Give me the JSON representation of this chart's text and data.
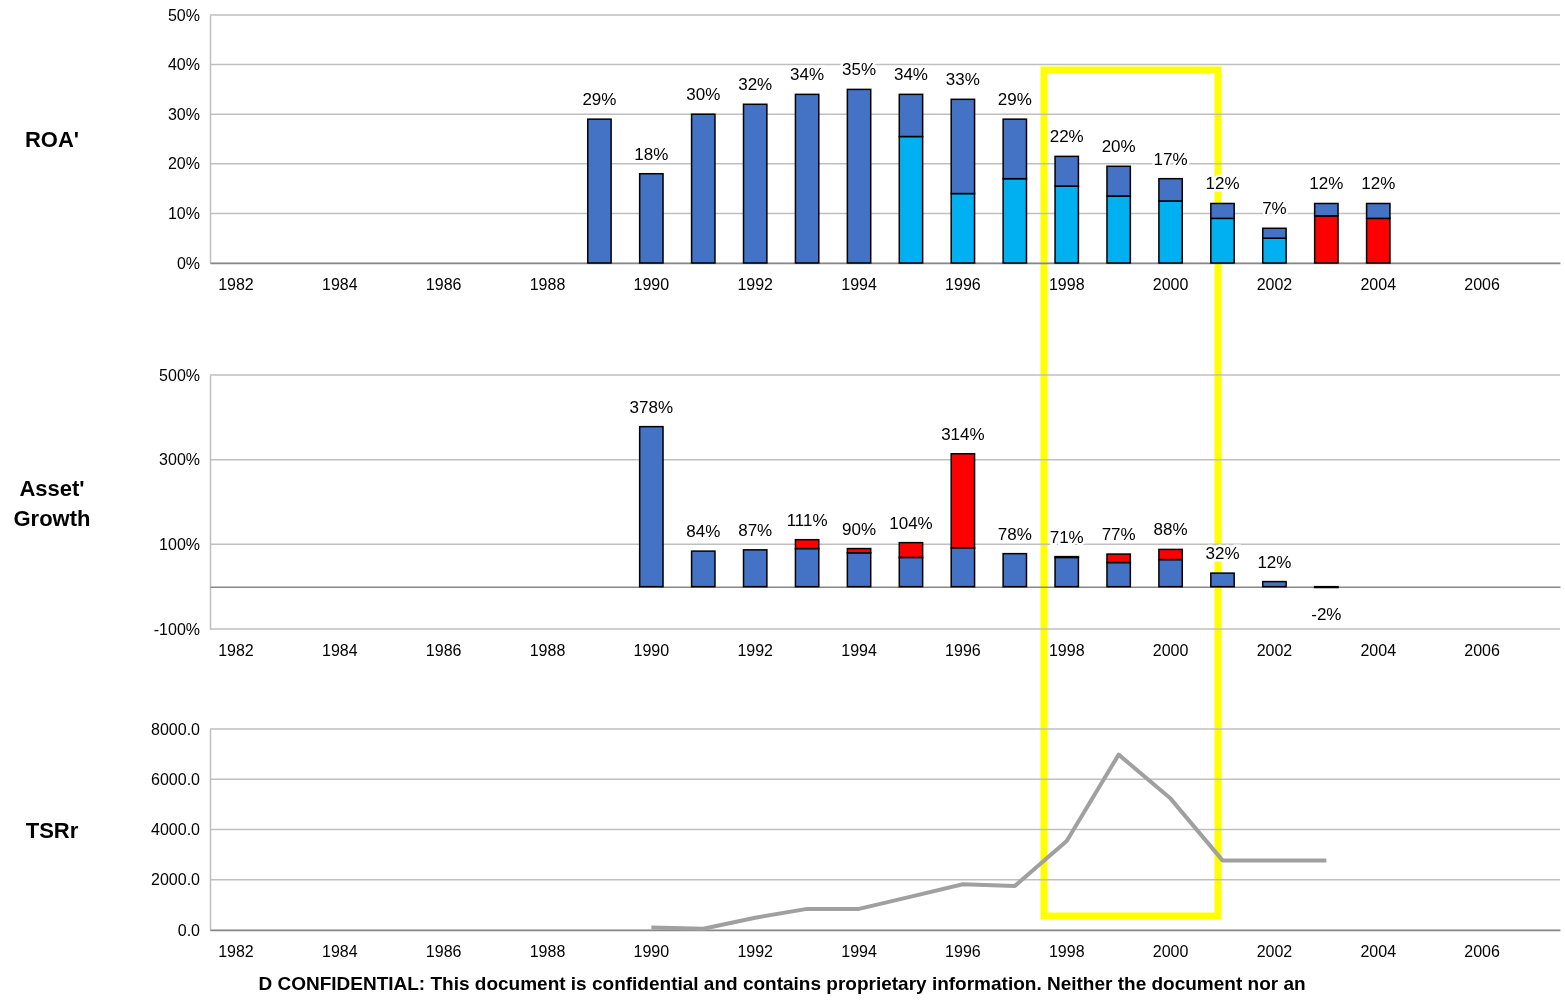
{
  "chart_data": [
    {
      "type": "bar",
      "ylabel": "ROA'",
      "stacked": true,
      "grid": "y",
      "categories": [
        "1982",
        null,
        "1984",
        null,
        "1986",
        null,
        "1988",
        null,
        "1990",
        null,
        "1992",
        null,
        "1994",
        null,
        "1996",
        null,
        "1998",
        null,
        "2000",
        null,
        "2002",
        null,
        "2004",
        null,
        "2006",
        null
      ],
      "series": [
        {
          "color": "#00b0f0",
          "values": [
            null,
            null,
            null,
            null,
            null,
            null,
            null,
            null,
            null,
            null,
            null,
            null,
            null,
            25.5,
            14,
            17,
            15.5,
            13.5,
            12.5,
            9,
            5,
            null,
            null,
            null,
            null,
            null
          ]
        },
        {
          "color": "#ff0000",
          "values": [
            null,
            null,
            null,
            null,
            null,
            null,
            null,
            null,
            null,
            null,
            null,
            null,
            null,
            null,
            null,
            null,
            null,
            null,
            null,
            null,
            null,
            9.5,
            9,
            null,
            null,
            null
          ]
        },
        {
          "color": "#4472c4",
          "values": [
            null,
            null,
            null,
            null,
            null,
            null,
            null,
            29,
            18,
            30,
            32,
            34,
            35,
            8.5,
            19,
            12,
            6,
            6,
            4.5,
            3,
            2,
            2.5,
            3,
            null,
            null,
            null
          ]
        }
      ],
      "totals": [
        null,
        null,
        null,
        null,
        null,
        null,
        null,
        "29%",
        "18%",
        "30%",
        "32%",
        "34%",
        "35%",
        "34%",
        "33%",
        "29%",
        "22%",
        "20%",
        "17%",
        "12%",
        "7%",
        "12%",
        "12%",
        null,
        null,
        null
      ],
      "ylim": [
        0,
        50
      ],
      "yticks": [
        {
          "value": 0,
          "label": "0%"
        },
        {
          "value": 10,
          "label": "10%"
        },
        {
          "value": 20,
          "label": "20%"
        },
        {
          "value": 30,
          "label": "30%"
        },
        {
          "value": 40,
          "label": "40%"
        },
        {
          "value": 50,
          "label": "50%"
        }
      ]
    },
    {
      "type": "bar",
      "ylabel": "Asset' Growth",
      "stacked": true,
      "grid": "y",
      "categories": [
        "1982",
        null,
        "1984",
        null,
        "1986",
        null,
        "1988",
        null,
        "1990",
        null,
        "1992",
        null,
        "1994",
        null,
        "1996",
        null,
        "1998",
        null,
        "2000",
        null,
        "2002",
        null,
        "2004",
        null,
        "2006",
        null
      ],
      "series": [
        {
          "color": "#4472c4",
          "values": [
            null,
            null,
            null,
            null,
            null,
            null,
            null,
            null,
            378,
            84,
            87,
            90,
            80,
            69,
            92,
            78,
            69,
            57,
            64,
            32,
            12,
            -2,
            null,
            null,
            null,
            null
          ]
        },
        {
          "color": "#ff0000",
          "values": [
            null,
            null,
            null,
            null,
            null,
            null,
            null,
            null,
            null,
            null,
            null,
            21,
            10,
            35,
            222,
            null,
            2,
            20,
            24,
            null,
            null,
            null,
            null,
            null,
            null,
            null
          ]
        }
      ],
      "totals": [
        null,
        null,
        null,
        null,
        null,
        null,
        null,
        null,
        "378%",
        "84%",
        "87%",
        "111%",
        "90%",
        "104%",
        "314%",
        "78%",
        "71%",
        "77%",
        "88%",
        "32%",
        "12%",
        "-2%",
        null,
        null,
        null,
        null
      ],
      "ylim": [
        -100,
        500
      ],
      "yticks": [
        {
          "value": -100,
          "label": "-100%"
        },
        {
          "value": 100,
          "label": "100%"
        },
        {
          "value": 300,
          "label": "300%"
        },
        {
          "value": 500,
          "label": "500%"
        }
      ]
    },
    {
      "type": "line",
      "ylabel": "TSRr",
      "grid": "y",
      "line_style": "solid",
      "categories": [
        "1982",
        null,
        "1984",
        null,
        "1986",
        null,
        "1988",
        null,
        "1990",
        null,
        "1992",
        null,
        "1994",
        null,
        "1996",
        null,
        "1998",
        null,
        "2000",
        null,
        "2002",
        null,
        "2004",
        null,
        "2006",
        null
      ],
      "series": [
        {
          "color": "#a0a0a0",
          "values": [
            null,
            null,
            null,
            null,
            null,
            null,
            null,
            null,
            100,
            50,
            490,
            840,
            840,
            1330,
            1820,
            1750,
            3540,
            6980,
            5230,
            2770,
            2770,
            2770,
            null,
            null,
            null,
            null
          ]
        }
      ],
      "ylim": [
        0,
        8000
      ],
      "yticks": [
        {
          "value": 0,
          "label": "0.0"
        },
        {
          "value": 2000,
          "label": "2000.0"
        },
        {
          "value": 4000,
          "label": "4000.0"
        },
        {
          "value": 6000,
          "label": "6000.0"
        },
        {
          "value": 8000,
          "label": "8000.0"
        }
      ],
      "annotations": [
        "D CONFIDENTIAL: This document is confidential and contains proprietary information. Neither the document nor an"
      ]
    }
  ]
}
